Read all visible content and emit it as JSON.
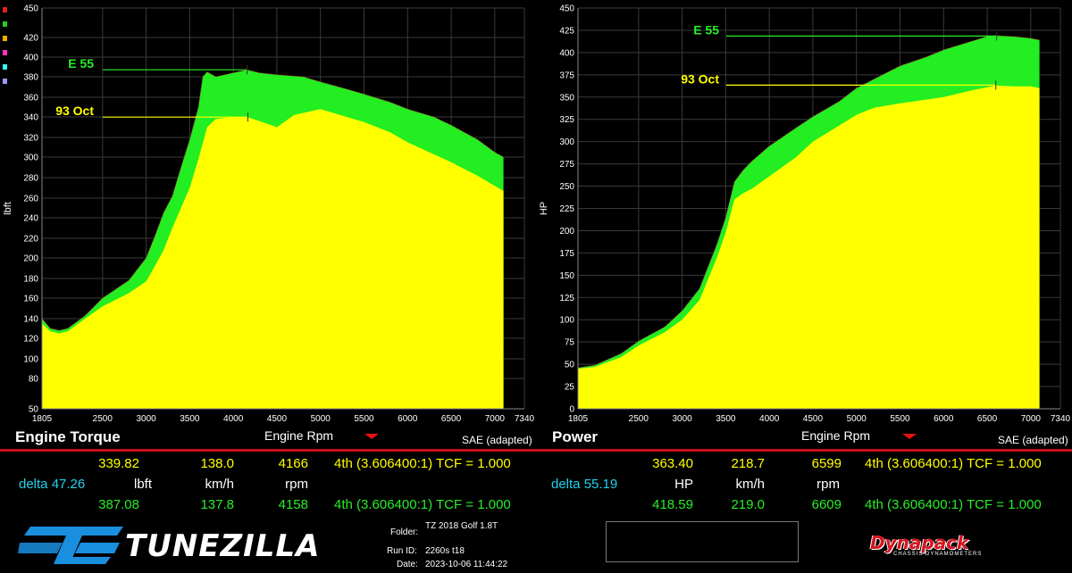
{
  "colors": {
    "tune_a_fill": "#ffff00",
    "tune_b_fill": "#22ee22",
    "background": "#000000",
    "divider": "#c8101c"
  },
  "legend_colors": [
    "#e02020",
    "#20d020",
    "#ffaa00",
    "#ff33cc",
    "#33ffff",
    "#9999ff"
  ],
  "torque_panel": {
    "title": "Engine Torque",
    "xlabel": "Engine Rpm",
    "ylabel": "lbft",
    "standard": "SAE (adapted)",
    "x_ticks": [
      "1805",
      "2500",
      "3000",
      "3500",
      "4000",
      "4500",
      "5000",
      "5500",
      "6000",
      "6500",
      "7000",
      "7340"
    ],
    "y_ticks": [
      "450",
      "420",
      "400",
      "380",
      "360",
      "340",
      "320",
      "300",
      "280",
      "260",
      "240",
      "220",
      "200",
      "180",
      "160",
      "140",
      "120",
      "100",
      "80",
      "50"
    ],
    "marker_a_label": "93 Oct",
    "marker_b_label": "E 55",
    "readout_a": {
      "value": "339.82",
      "speed": "138.0",
      "rpm": "4166",
      "gear": "4th (3.606400:1) TCF = 1.000"
    },
    "readout_b": {
      "value": "387.08",
      "speed": "137.8",
      "rpm": "4158",
      "gear": "4th (3.606400:1) TCF = 1.000"
    },
    "delta": "delta 47.26",
    "unit": "lbft",
    "speed_unit": "km/h",
    "rpm_unit": "rpm"
  },
  "power_panel": {
    "title": "Power",
    "xlabel": "Engine Rpm",
    "ylabel": "HP",
    "standard": "SAE (adapted)",
    "x_ticks": [
      "1805",
      "2500",
      "3000",
      "3500",
      "4000",
      "4500",
      "5000",
      "5500",
      "6000",
      "6500",
      "7000",
      "7340"
    ],
    "y_ticks": [
      "450",
      "425",
      "400",
      "375",
      "350",
      "325",
      "300",
      "275",
      "250",
      "225",
      "200",
      "175",
      "150",
      "125",
      "100",
      "75",
      "50",
      "25",
      "0"
    ],
    "marker_a_label": "93 Oct",
    "marker_b_label": "E 55",
    "readout_a": {
      "value": "363.40",
      "speed": "218.7",
      "rpm": "6599",
      "gear": "4th (3.606400:1) TCF = 1.000"
    },
    "readout_b": {
      "value": "418.59",
      "speed": "219.0",
      "rpm": "6609",
      "gear": "4th (3.606400:1) TCF = 1.000"
    },
    "delta": "delta 55.19",
    "unit": "HP",
    "speed_unit": "km/h",
    "rpm_unit": "rpm"
  },
  "footer": {
    "brand": "TUNEZILLA",
    "folder_label": "Folder:",
    "folder_value": "TZ 2018 Golf 1.8T",
    "run_label": "Run ID:",
    "run_value": "2260s t18",
    "date_label": "Date:",
    "date_value": "2023-10-06 11:44:22",
    "dyno_brand": "Dynapack",
    "dyno_sub": "CHASSIS DYNAMOMETERS"
  },
  "chart_data": [
    {
      "type": "area",
      "title": "Engine Torque",
      "xlabel": "Engine Rpm",
      "ylabel": "lbft",
      "xlim": [
        1805,
        7340
      ],
      "y_ticks": [
        50,
        80,
        100,
        120,
        140,
        160,
        180,
        200,
        220,
        240,
        260,
        280,
        300,
        320,
        340,
        360,
        380,
        400,
        420,
        450
      ],
      "series": [
        {
          "name": "93 Oct",
          "x": [
            1805,
            1900,
            2000,
            2100,
            2300,
            2500,
            2800,
            3000,
            3100,
            3200,
            3300,
            3400,
            3500,
            3600,
            3700,
            3800,
            4000,
            4150,
            4300,
            4500,
            4700,
            4900,
            5000,
            5300,
            5500,
            5800,
            6000,
            6300,
            6500,
            6800,
            7000,
            7100
          ],
          "y": [
            135,
            127,
            125,
            127,
            140,
            152,
            165,
            177,
            192,
            208,
            230,
            250,
            270,
            298,
            330,
            338,
            340,
            340,
            336,
            330,
            342,
            346,
            348,
            340,
            335,
            325,
            315,
            303,
            295,
            282,
            272,
            267
          ]
        },
        {
          "name": "E 55",
          "x": [
            1805,
            1900,
            2000,
            2100,
            2300,
            2500,
            2800,
            3000,
            3100,
            3200,
            3300,
            3400,
            3500,
            3600,
            3650,
            3700,
            3800,
            4000,
            4160,
            4300,
            4500,
            4800,
            5000,
            5300,
            5500,
            5800,
            6000,
            6300,
            6500,
            6800,
            7000,
            7100
          ],
          "y": [
            140,
            130,
            128,
            130,
            143,
            160,
            178,
            200,
            222,
            245,
            262,
            290,
            318,
            350,
            380,
            385,
            380,
            384,
            387,
            384,
            382,
            380,
            375,
            368,
            363,
            355,
            348,
            340,
            332,
            318,
            305,
            300
          ]
        }
      ]
    },
    {
      "type": "area",
      "title": "Power",
      "xlabel": "Engine Rpm",
      "ylabel": "HP",
      "xlim": [
        1805,
        7340
      ],
      "ylim": [
        0,
        450
      ],
      "series": [
        {
          "name": "93 Oct",
          "x": [
            1805,
            2000,
            2300,
            2500,
            2800,
            3000,
            3200,
            3400,
            3500,
            3600,
            3700,
            3800,
            4000,
            4300,
            4500,
            5000,
            5200,
            5500,
            6000,
            6300,
            6600,
            6800,
            7000,
            7100
          ],
          "y": [
            45,
            47,
            58,
            71,
            86,
            100,
            122,
            170,
            198,
            235,
            242,
            247,
            261,
            282,
            300,
            330,
            338,
            343,
            350,
            357,
            363,
            362,
            362,
            360
          ]
        },
        {
          "name": "E 55",
          "x": [
            1805,
            2000,
            2300,
            2500,
            2800,
            3000,
            3200,
            3400,
            3500,
            3600,
            3700,
            3800,
            4000,
            4300,
            4500,
            4800,
            5000,
            5300,
            5500,
            5800,
            6000,
            6300,
            6500,
            6600,
            6800,
            7000,
            7100
          ],
          "y": [
            46,
            49,
            62,
            76,
            92,
            110,
            135,
            185,
            215,
            255,
            268,
            278,
            295,
            315,
            328,
            345,
            360,
            375,
            385,
            395,
            403,
            412,
            418,
            419,
            418,
            416,
            414
          ]
        }
      ]
    }
  ]
}
